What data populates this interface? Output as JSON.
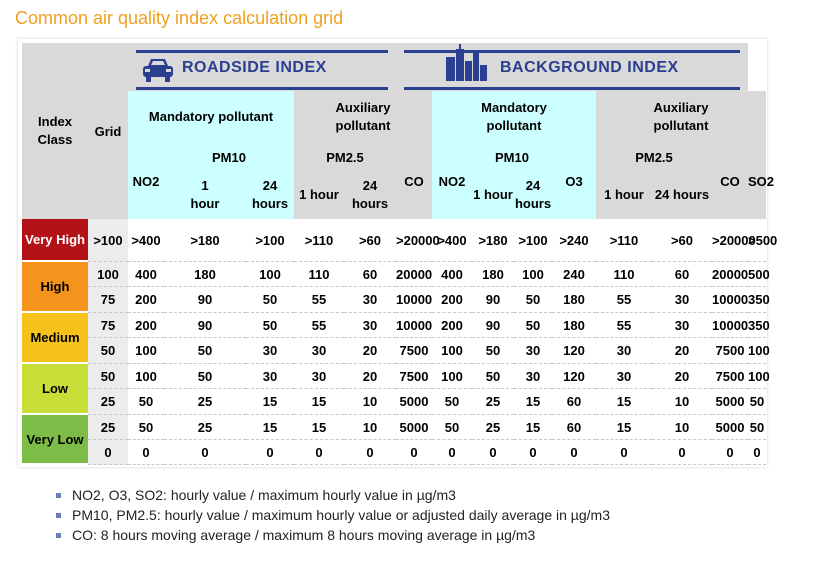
{
  "title": "Common air quality index calculation grid",
  "colors": {
    "title": "#f0a020",
    "band": "#2a3f8f",
    "gray_header": "#d9d9d9",
    "cyan_header": "#ccffff",
    "very_high": "#b31217",
    "high": "#f4941c",
    "medium": "#f5c21c",
    "low": "#c8df3a",
    "very_low": "#7dbd47"
  },
  "header": {
    "index_class": "Index Class",
    "grid": "Grid",
    "roadside": "ROADSIDE INDEX",
    "background": "BACKGROUND INDEX",
    "roadside_icon": "car-icon",
    "background_icon": "city-buildings-icon",
    "mandatory": "Mandatory pollutant",
    "auxiliary": "Auxiliary pollutant",
    "pm10": "PM10",
    "pm25": "PM2.5",
    "no2": "NO2",
    "co": "CO",
    "o3": "O3",
    "so2": "SO2",
    "one_hour": "1 hour",
    "twentyfour_hours": "24 hours"
  },
  "classes": [
    {
      "label": "Very High",
      "key": "vh"
    },
    {
      "label": "High",
      "key": "hi"
    },
    {
      "label": "Medium",
      "key": "me"
    },
    {
      "label": "Low",
      "key": "lo"
    },
    {
      "label": "Very Low",
      "key": "vl"
    }
  ],
  "rows": [
    [
      ">100",
      ">400",
      ">180",
      ">100",
      ">110",
      ">60",
      ">20000",
      ">400",
      ">180",
      ">100",
      ">240",
      ">110",
      ">60",
      ">20000",
      ">500"
    ],
    [
      "100",
      "400",
      "180",
      "100",
      "110",
      "60",
      "20000",
      "400",
      "180",
      "100",
      "240",
      "110",
      "60",
      "20000",
      "500"
    ],
    [
      "75",
      "200",
      "90",
      "50",
      "55",
      "30",
      "10000",
      "200",
      "90",
      "50",
      "180",
      "55",
      "30",
      "10000",
      "350"
    ],
    [
      "75",
      "200",
      "90",
      "50",
      "55",
      "30",
      "10000",
      "200",
      "90",
      "50",
      "180",
      "55",
      "30",
      "10000",
      "350"
    ],
    [
      "50",
      "100",
      "50",
      "30",
      "30",
      "20",
      "7500",
      "100",
      "50",
      "30",
      "120",
      "30",
      "20",
      "7500",
      "100"
    ],
    [
      "50",
      "100",
      "50",
      "30",
      "30",
      "20",
      "7500",
      "100",
      "50",
      "30",
      "120",
      "30",
      "20",
      "7500",
      "100"
    ],
    [
      "25",
      "50",
      "25",
      "15",
      "15",
      "10",
      "5000",
      "50",
      "25",
      "15",
      "60",
      "15",
      "10",
      "5000",
      "50"
    ],
    [
      "25",
      "50",
      "25",
      "15",
      "15",
      "10",
      "5000",
      "50",
      "25",
      "15",
      "60",
      "15",
      "10",
      "5000",
      "50"
    ],
    [
      "0",
      "0",
      "0",
      "0",
      "0",
      "0",
      "0",
      "0",
      "0",
      "0",
      "0",
      "0",
      "0",
      "0",
      "0"
    ]
  ],
  "notes": [
    "NO2, O3, SO2: hourly value / maximum hourly value in µg/m3",
    "PM10, PM2.5: hourly value / maximum hourly value or adjusted daily average in µg/m3",
    "CO: 8 hours moving average / maximum 8 hours moving average in µg/m3"
  ]
}
